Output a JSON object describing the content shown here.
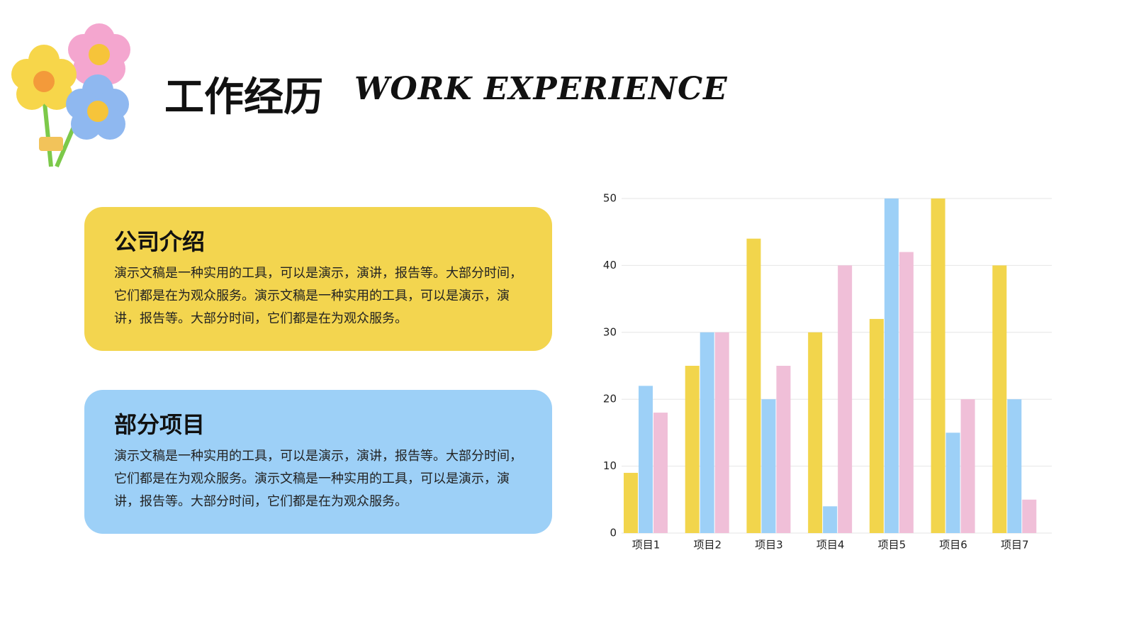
{
  "header": {
    "title": "工作经历",
    "subtitle": "WORK EXPERIENCE"
  },
  "cards": [
    {
      "title": "公司介绍",
      "text": "演示文稿是一种实用的工具，可以是演示，演讲，报告等。大部分时间，它们都是在为观众服务。演示文稿是一种实用的工具，可以是演示，演讲，报告等。大部分时间，它们都是在为观众服务。"
    },
    {
      "title": "部分项目",
      "text": "演示文稿是一种实用的工具，可以是演示，演讲，报告等。大部分时间，它们都是在为观众服务。演示文稿是一种实用的工具，可以是演示，演讲，报告等。大部分时间，它们都是在为观众服务。"
    }
  ],
  "chart_data": {
    "type": "bar",
    "categories": [
      "项目1",
      "项目2",
      "项目3",
      "项目4",
      "项目5",
      "项目6",
      "项目7"
    ],
    "series": [
      {
        "color": "#f2d54c",
        "values": [
          9,
          25,
          44,
          30,
          32,
          50,
          40
        ]
      },
      {
        "color": "#9dd0f7",
        "values": [
          22,
          30,
          20,
          4,
          50,
          15,
          20
        ]
      },
      {
        "color": "#f0bfd8",
        "values": [
          18,
          30,
          25,
          40,
          42,
          20,
          5
        ]
      }
    ],
    "ylim": [
      0,
      50
    ],
    "yticks": [
      0,
      10,
      20,
      30,
      40,
      50
    ],
    "grid": true
  }
}
